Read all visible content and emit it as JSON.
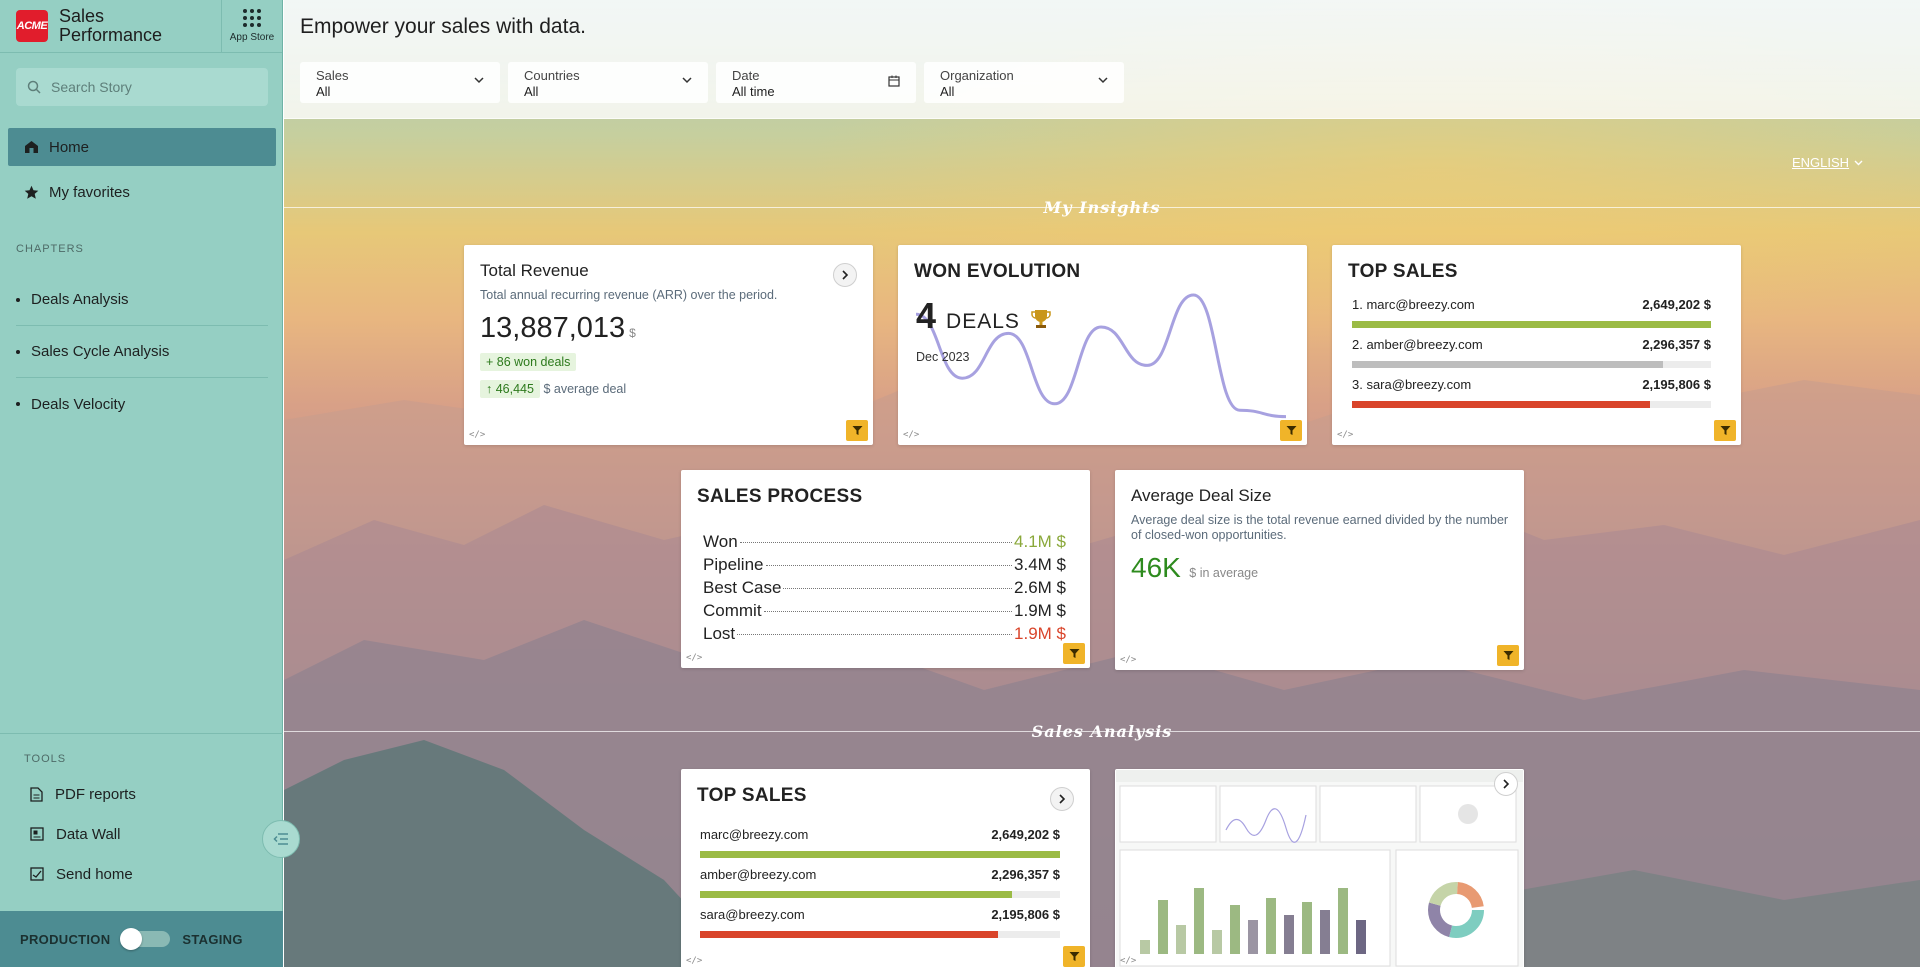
{
  "sidebar": {
    "logo": "ACME",
    "app_title": "Sales Performance",
    "app_store": "App Store",
    "search_placeholder": "Search Story",
    "nav": [
      {
        "label": "Home",
        "active": true
      },
      {
        "label": "My favorites"
      }
    ],
    "chapters_heading": "CHAPTERS",
    "chapters": [
      "Deals Analysis",
      "Sales Cycle Analysis",
      "Deals Velocity"
    ],
    "tools_heading": "TOOLS",
    "tools": [
      "PDF reports",
      "Data Wall",
      "Send home"
    ],
    "env_left": "PRODUCTION",
    "env_right": "STAGING"
  },
  "header": {
    "headline": "Empower your sales with data.",
    "filters": [
      {
        "label": "Sales",
        "value": "All",
        "icon": "chevron-down-icon"
      },
      {
        "label": "Countries",
        "value": "All",
        "icon": "chevron-down-icon"
      },
      {
        "label": "Date",
        "value": "All time",
        "icon": "calendar-icon"
      },
      {
        "label": "Organization",
        "value": "All",
        "icon": "chevron-down-icon"
      }
    ]
  },
  "language": "ENGLISH",
  "sections": {
    "insights": "My Insights",
    "analysis": "Sales Analysis"
  },
  "total_revenue": {
    "title": "Total Revenue",
    "desc": "Total annual recurring revenue (ARR) over the period.",
    "value": "13,887,013",
    "unit": "$",
    "won_deals": "+ 86 won deals",
    "avg_value": "↑ 46,445",
    "avg_label": "$ average deal"
  },
  "won_evolution": {
    "title": "WON EVOLUTION",
    "count": "4",
    "label": "DEALS",
    "date": "Dec 2023",
    "trend": [
      0.85,
      0.35,
      0.7,
      0.15,
      0.75,
      0.45,
      1.0,
      0.1,
      0.05
    ]
  },
  "top_sales": {
    "title": "TOP SALES",
    "rows": [
      {
        "name": "1. marc@breezy.com",
        "value": "2,649,202 $",
        "pct": 1.0,
        "color": "#9bbb45"
      },
      {
        "name": "2. amber@breezy.com",
        "value": "2,296,357 $",
        "pct": 0.867,
        "color": "#bdbdbd"
      },
      {
        "name": "3. sara@breezy.com",
        "value": "2,195,806 $",
        "pct": 0.829,
        "color": "#d9442a"
      }
    ]
  },
  "sales_process": {
    "title": "SALES PROCESS",
    "rows": [
      {
        "label": "Won",
        "value": "4.1M $",
        "color": "#8aa83a"
      },
      {
        "label": "Pipeline",
        "value": "3.4M $",
        "color": "#222222"
      },
      {
        "label": "Best Case",
        "value": "2.6M $",
        "color": "#222222"
      },
      {
        "label": "Commit",
        "value": "1.9M $",
        "color": "#222222"
      },
      {
        "label": "Lost",
        "value": "1.9M $",
        "color": "#d9442a"
      }
    ]
  },
  "avg_deal": {
    "title": "Average Deal Size",
    "desc": "Average deal size is the total revenue earned divided by the number of closed-won opportunities.",
    "value": "46K",
    "label": "$ in average"
  },
  "top_sales_2": {
    "title": "TOP SALES",
    "rows": [
      {
        "name": "marc@breezy.com",
        "value": "2,649,202 $",
        "pct": 1.0,
        "color": "#9bbb45"
      },
      {
        "name": "amber@breezy.com",
        "value": "2,296,357 $",
        "pct": 0.867,
        "color": "#9bbb45"
      },
      {
        "name": "sara@breezy.com",
        "value": "2,195,806 $",
        "pct": 0.829,
        "color": "#d9442a"
      }
    ]
  },
  "code_icon": "</>"
}
